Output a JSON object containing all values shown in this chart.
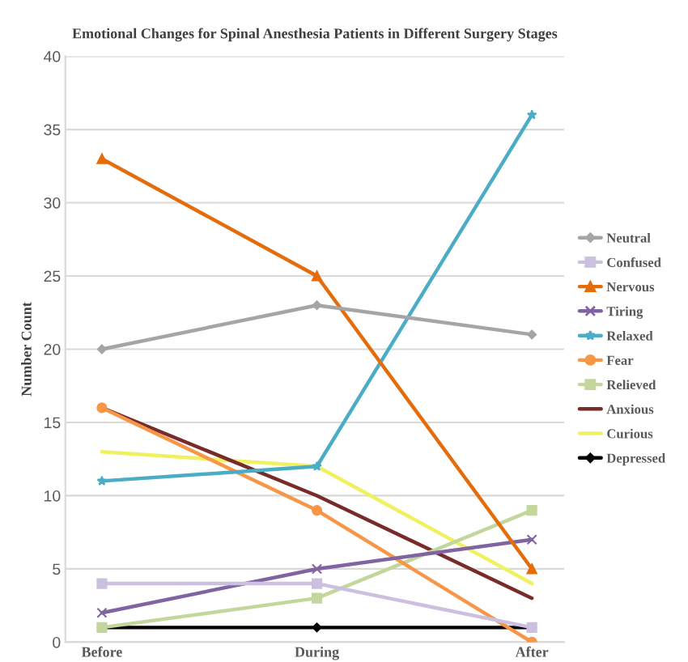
{
  "chart_data": {
    "type": "line",
    "title": "Emotional Changes for Spinal Anesthesia Patients in Different Surgery Stages",
    "ylabel": "Number Count",
    "categories": [
      "Before",
      "During",
      "After"
    ],
    "series": [
      {
        "name": "Neutral",
        "color": "#a5a5a5",
        "marker": "diamond",
        "values": [
          20,
          23,
          21
        ]
      },
      {
        "name": "Confused",
        "color": "#ccc0e0",
        "marker": "square",
        "values": [
          4,
          4,
          1
        ]
      },
      {
        "name": "Nervous",
        "color": "#e46c0a",
        "marker": "triangle",
        "values": [
          33,
          25,
          5
        ]
      },
      {
        "name": "Tiring",
        "color": "#8064a2",
        "marker": "cross",
        "values": [
          2,
          5,
          7
        ]
      },
      {
        "name": "Relaxed",
        "color": "#4bacc6",
        "marker": "star",
        "values": [
          11,
          12,
          36
        ]
      },
      {
        "name": "Fear",
        "color": "#f79646",
        "marker": "circle",
        "values": [
          16,
          9,
          0
        ]
      },
      {
        "name": "Relieved",
        "color": "#c3d69b",
        "marker": "square",
        "values": [
          1,
          3,
          9
        ]
      },
      {
        "name": "Anxious",
        "color": "#772c2a",
        "marker": "none",
        "values": [
          16,
          10,
          3
        ]
      },
      {
        "name": "Curious",
        "color": "#f0f060",
        "marker": "none",
        "values": [
          13,
          12,
          4
        ]
      },
      {
        "name": "Depressed",
        "color": "#000000",
        "marker": "diamond",
        "values": [
          1,
          1,
          1
        ]
      }
    ],
    "ylim": [
      0,
      40
    ],
    "yticks": [
      0,
      5,
      10,
      15,
      20,
      25,
      30,
      35,
      40
    ],
    "grid": "y",
    "legend": "right",
    "line_style": "solid"
  }
}
